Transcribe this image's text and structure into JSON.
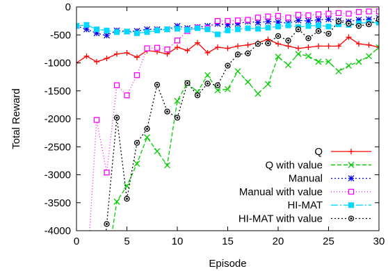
{
  "chart_data": {
    "type": "line",
    "title": "",
    "xlabel": "Episode",
    "ylabel": "Total Reward",
    "xlim": [
      0,
      30
    ],
    "ylim": [
      -4000,
      0
    ],
    "xticks": [
      0,
      5,
      10,
      15,
      20,
      25,
      30
    ],
    "yticks": [
      0,
      -500,
      -1000,
      -1500,
      -2000,
      -2500,
      -3000,
      -3500,
      -4000
    ],
    "grid": false,
    "legend_position": "bottom-right",
    "x": [
      0,
      1,
      2,
      3,
      4,
      5,
      6,
      7,
      8,
      9,
      10,
      11,
      12,
      13,
      14,
      15,
      16,
      17,
      18,
      19,
      20,
      21,
      22,
      23,
      24,
      25,
      26,
      27,
      28,
      29,
      30
    ],
    "series": [
      {
        "name": "Q",
        "color": "#ff0000",
        "dash": "solid",
        "marker": "plus",
        "values": [
          -1000,
          -880,
          -980,
          -920,
          -840,
          -820,
          -900,
          -780,
          -800,
          -840,
          -720,
          -780,
          -640,
          -820,
          -720,
          -740,
          -700,
          -680,
          -640,
          -580,
          -660,
          -700,
          -740,
          -720,
          -700,
          -700,
          -700,
          -540,
          -660,
          -680,
          -720
        ]
      },
      {
        "name": "Q with value",
        "color": "#00cc00",
        "dash": "6,3",
        "marker": "x",
        "values": [
          null,
          null,
          null,
          null,
          -3480,
          -3200,
          -2800,
          -2330,
          -2580,
          -2830,
          -1680,
          -1360,
          -1520,
          -1220,
          -1490,
          -1470,
          -1150,
          -1340,
          -1550,
          -1380,
          -890,
          -1040,
          -840,
          -880,
          -980,
          -980,
          -1150,
          -1050,
          -980,
          -880,
          -720
        ]
      },
      {
        "name": "Manual",
        "color": "#0000ff",
        "dash": "2,3",
        "marker": "star",
        "values": [
          -340,
          -400,
          -470,
          -510,
          -420,
          -440,
          -430,
          -400,
          -400,
          -400,
          -340,
          -380,
          -360,
          -340,
          -300,
          -320,
          -300,
          -260,
          -280,
          -260,
          -270,
          -290,
          -240,
          -250,
          -230,
          -220,
          -240,
          -260,
          -230,
          -220,
          -200
        ]
      },
      {
        "name": "Manual with value",
        "color": "#ff00ff",
        "dash": "1,3",
        "marker": "square",
        "values": [
          null,
          null,
          -2020,
          -2960,
          -1400,
          -1580,
          -1220,
          -740,
          -730,
          -760,
          -600,
          -430,
          -370,
          -380,
          -250,
          -250,
          -240,
          -230,
          -190,
          -170,
          -160,
          -190,
          -140,
          -150,
          -130,
          -120,
          -110,
          -120,
          -90,
          -80,
          -80
        ]
      },
      {
        "name": "HI-MAT",
        "color": "#00d8ff",
        "dash": "10,3,2,3",
        "marker": "filled-square",
        "values": [
          -340,
          -320,
          -400,
          -420,
          -450,
          -440,
          -470,
          -450,
          -420,
          -400,
          -390,
          -410,
          -380,
          -400,
          -490,
          -420,
          -400,
          -380,
          -390,
          -370,
          -350,
          -330,
          -360,
          -340,
          -330,
          -350,
          -310,
          -320,
          -290,
          -280,
          -280
        ]
      },
      {
        "name": "HI-MAT with value",
        "color": "#000000",
        "dash": "2,3",
        "marker": "circle",
        "values": [
          null,
          null,
          null,
          -3880,
          -1980,
          -3430,
          -2430,
          -2180,
          -1390,
          -1870,
          -1980,
          -1360,
          -1580,
          -1370,
          -1400,
          -1050,
          -850,
          -830,
          -660,
          -650,
          -520,
          -600,
          -400,
          -560,
          -430,
          -480,
          -260,
          -300,
          -340,
          -310,
          -220
        ]
      }
    ]
  }
}
